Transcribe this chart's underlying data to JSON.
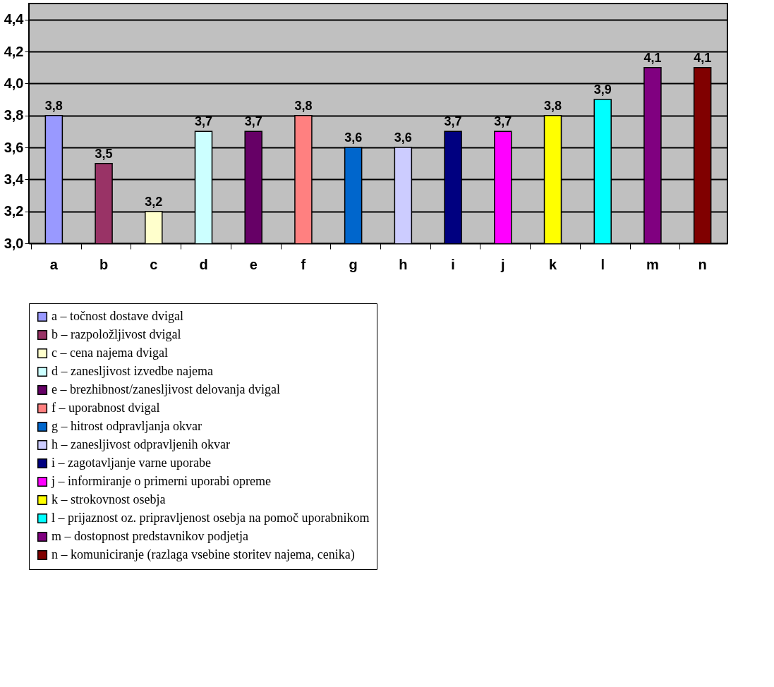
{
  "chart_data": {
    "type": "bar",
    "categories": [
      "a",
      "b",
      "c",
      "d",
      "e",
      "f",
      "g",
      "h",
      "i",
      "j",
      "k",
      "l",
      "m",
      "n"
    ],
    "series": [
      {
        "name": "a – točnost dostave dvigal",
        "color": "#9999ff",
        "values": [
          3.8,
          null,
          null,
          null,
          null,
          null,
          null,
          null,
          null,
          null,
          null,
          null,
          null,
          null
        ],
        "value_labels": [
          "3,8",
          null,
          null,
          null,
          null,
          null,
          null,
          null,
          null,
          null,
          null,
          null,
          null,
          null
        ]
      },
      {
        "name": "b – razpoložljivost dvigal",
        "color": "#993366",
        "values": [
          null,
          3.5,
          null,
          null,
          null,
          null,
          null,
          null,
          null,
          null,
          null,
          null,
          null,
          null
        ],
        "value_labels": [
          null,
          "3,5",
          null,
          null,
          null,
          null,
          null,
          null,
          null,
          null,
          null,
          null,
          null,
          null
        ]
      },
      {
        "name": "c – cena najema dvigal",
        "color": "#ffffcc",
        "values": [
          null,
          null,
          3.2,
          null,
          null,
          null,
          null,
          null,
          null,
          null,
          null,
          null,
          null,
          null
        ],
        "value_labels": [
          null,
          null,
          "3,2",
          null,
          null,
          null,
          null,
          null,
          null,
          null,
          null,
          null,
          null,
          null
        ]
      },
      {
        "name": "d – zanesljivost izvedbe najema",
        "color": "#ccffff",
        "values": [
          null,
          null,
          null,
          3.7,
          null,
          null,
          null,
          null,
          null,
          null,
          null,
          null,
          null,
          null
        ],
        "value_labels": [
          null,
          null,
          null,
          "3,7",
          null,
          null,
          null,
          null,
          null,
          null,
          null,
          null,
          null,
          null
        ]
      },
      {
        "name": "e – brezhibnost/zanesljivost delovanja dvigal",
        "color": "#660066",
        "values": [
          null,
          null,
          null,
          null,
          3.7,
          null,
          null,
          null,
          null,
          null,
          null,
          null,
          null,
          null
        ],
        "value_labels": [
          null,
          null,
          null,
          null,
          "3,7",
          null,
          null,
          null,
          null,
          null,
          null,
          null,
          null,
          null
        ]
      },
      {
        "name": "f – uporabnost dvigal",
        "color": "#ff8080",
        "values": [
          null,
          null,
          null,
          null,
          null,
          3.8,
          null,
          null,
          null,
          null,
          null,
          null,
          null,
          null
        ],
        "value_labels": [
          null,
          null,
          null,
          null,
          null,
          "3,8",
          null,
          null,
          null,
          null,
          null,
          null,
          null,
          null
        ]
      },
      {
        "name": "g – hitrost odpravljanja okvar",
        "color": "#0066cc",
        "values": [
          null,
          null,
          null,
          null,
          null,
          null,
          3.6,
          null,
          null,
          null,
          null,
          null,
          null,
          null
        ],
        "value_labels": [
          null,
          null,
          null,
          null,
          null,
          null,
          "3,6",
          null,
          null,
          null,
          null,
          null,
          null,
          null
        ]
      },
      {
        "name": "h – zanesljivost odpravljenih okvar",
        "color": "#ccccff",
        "values": [
          null,
          null,
          null,
          null,
          null,
          null,
          null,
          3.6,
          null,
          null,
          null,
          null,
          null,
          null
        ],
        "value_labels": [
          null,
          null,
          null,
          null,
          null,
          null,
          null,
          "3,6",
          null,
          null,
          null,
          null,
          null,
          null
        ]
      },
      {
        "name": "i – zagotavljanje varne uporabe",
        "color": "#000080",
        "values": [
          null,
          null,
          null,
          null,
          null,
          null,
          null,
          null,
          3.7,
          null,
          null,
          null,
          null,
          null
        ],
        "value_labels": [
          null,
          null,
          null,
          null,
          null,
          null,
          null,
          null,
          "3,7",
          null,
          null,
          null,
          null,
          null
        ]
      },
      {
        "name": "j – informiranje o primerni uporabi opreme",
        "color": "#ff00ff",
        "values": [
          null,
          null,
          null,
          null,
          null,
          null,
          null,
          null,
          null,
          3.7,
          null,
          null,
          null,
          null
        ],
        "value_labels": [
          null,
          null,
          null,
          null,
          null,
          null,
          null,
          null,
          null,
          "3,7",
          null,
          null,
          null,
          null
        ]
      },
      {
        "name": "k – strokovnost osebja",
        "color": "#ffff00",
        "values": [
          null,
          null,
          null,
          null,
          null,
          null,
          null,
          null,
          null,
          null,
          3.8,
          null,
          null,
          null
        ],
        "value_labels": [
          null,
          null,
          null,
          null,
          null,
          null,
          null,
          null,
          null,
          null,
          "3,8",
          null,
          null,
          null
        ]
      },
      {
        "name": "l – prijaznost oz. pripravljenost osebja na pomoč uporabnikom",
        "color": "#00ffff",
        "values": [
          null,
          null,
          null,
          null,
          null,
          null,
          null,
          null,
          null,
          null,
          null,
          3.9,
          null,
          null
        ],
        "value_labels": [
          null,
          null,
          null,
          null,
          null,
          null,
          null,
          null,
          null,
          null,
          null,
          "3,9",
          null,
          null
        ]
      },
      {
        "name": "m – dostopnost predstavnikov podjetja",
        "color": "#800080",
        "values": [
          null,
          null,
          null,
          null,
          null,
          null,
          null,
          null,
          null,
          null,
          null,
          null,
          4.1,
          null
        ],
        "value_labels": [
          null,
          null,
          null,
          null,
          null,
          null,
          null,
          null,
          null,
          null,
          null,
          null,
          "4,1",
          null
        ]
      },
      {
        "name": "n – komuniciranje (razlaga vsebine storitev najema, cenika)",
        "color": "#800000",
        "values": [
          null,
          null,
          null,
          null,
          null,
          null,
          null,
          null,
          null,
          null,
          null,
          null,
          null,
          4.1
        ],
        "value_labels": [
          null,
          null,
          null,
          null,
          null,
          null,
          null,
          null,
          null,
          null,
          null,
          null,
          null,
          "4,1"
        ]
      }
    ],
    "ylim": [
      3.0,
      4.5
    ],
    "yticks": [
      {
        "value": 3.0,
        "label": "3,0"
      },
      {
        "value": 3.2,
        "label": "3,2"
      },
      {
        "value": 3.4,
        "label": "3,4"
      },
      {
        "value": 3.6,
        "label": "3,6"
      },
      {
        "value": 3.8,
        "label": "3,8"
      },
      {
        "value": 4.0,
        "label": "4,0"
      },
      {
        "value": 4.2,
        "label": "4,2"
      },
      {
        "value": 4.4,
        "label": "4,4"
      }
    ],
    "grid": "y",
    "legend": "bottom"
  }
}
